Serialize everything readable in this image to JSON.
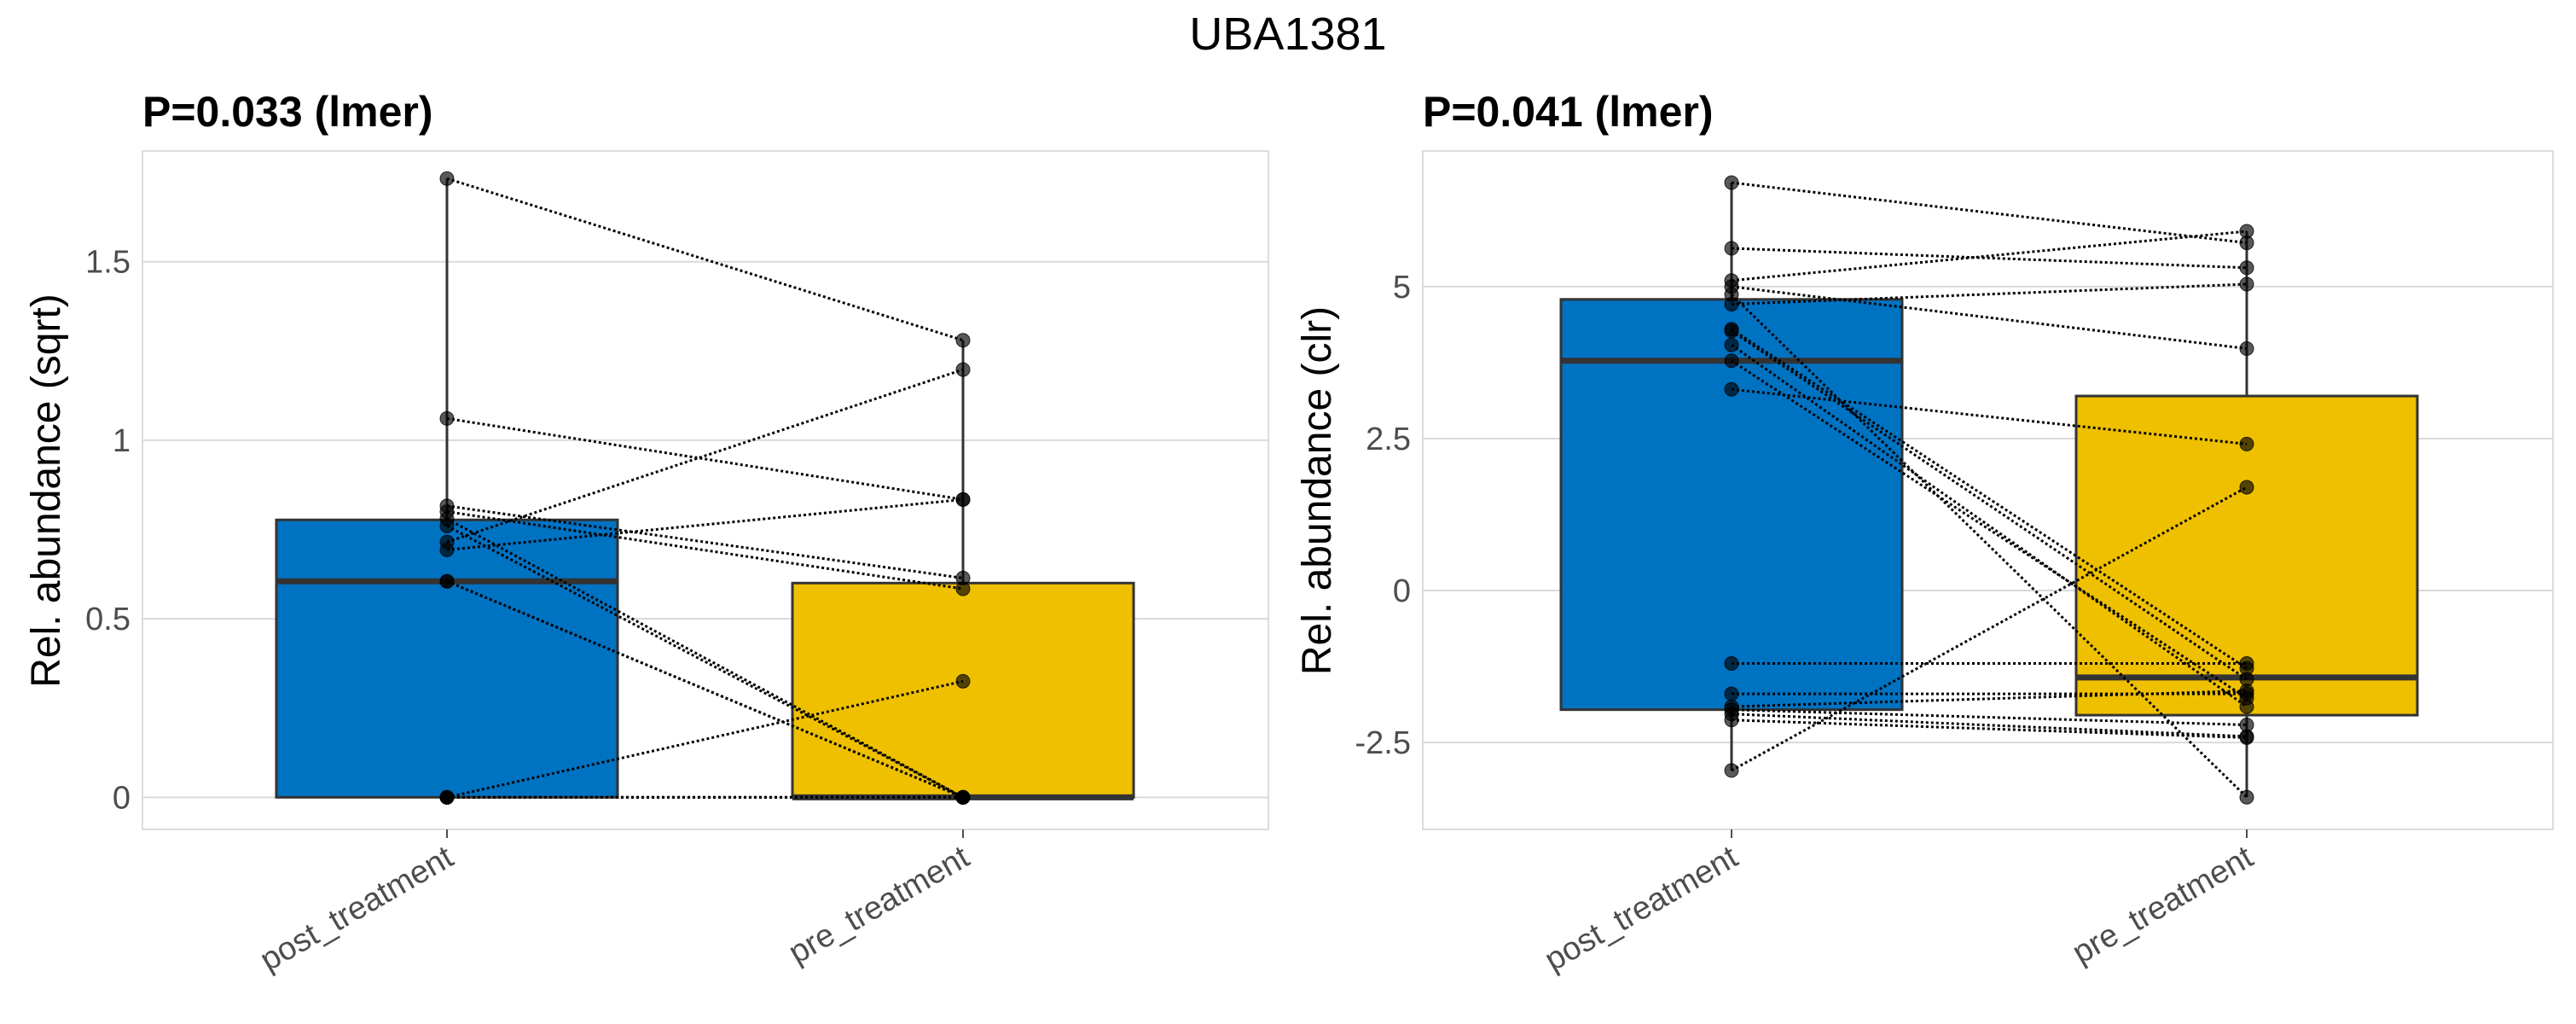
{
  "title": "UBA1381",
  "colors": {
    "post_treatment": "#0072C2",
    "pre_treatment": "#EFC000",
    "grid": "#d9d9d9",
    "box_line": "#333333"
  },
  "chart_data": [
    {
      "type": "box",
      "title": "P=0.033 (lmer)",
      "ylabel": "Rel. abundance (sqrt)",
      "xlabel": "",
      "categories": [
        "post_treatment",
        "pre_treatment"
      ],
      "ylim": [
        -0.09,
        1.81
      ],
      "yticks": [
        0,
        0.5,
        1,
        1.5
      ],
      "ytick_labels": [
        "0",
        "0.5",
        "1",
        "1.5"
      ],
      "grid": true,
      "boxes": [
        {
          "category": "post_treatment",
          "lower_whisker": 0,
          "q1": 0,
          "median": 0.605,
          "q3": 0.777,
          "upper_whisker": 1.733
        },
        {
          "category": "pre_treatment",
          "lower_whisker": 0,
          "q1": 0,
          "median": 0,
          "q3": 0.6,
          "upper_whisker": 1.28
        }
      ],
      "paired_points": [
        [
          1.733,
          1.28
        ],
        [
          1.061,
          0.834
        ],
        [
          0.816,
          0.614
        ],
        [
          0.8,
          0.584
        ],
        [
          0.78,
          0
        ],
        [
          0.76,
          0
        ],
        [
          0.715,
          1.198
        ],
        [
          0.693,
          0.834
        ],
        [
          0.605,
          0
        ],
        [
          0.605,
          0
        ],
        [
          0,
          0.325
        ],
        [
          0,
          0
        ],
        [
          0,
          0
        ],
        [
          0,
          0
        ]
      ]
    },
    {
      "type": "box",
      "title": "P=0.041 (lmer)",
      "ylabel": "Rel. abundance (clr)",
      "xlabel": "",
      "categories": [
        "post_treatment",
        "pre_treatment"
      ],
      "ylim": [
        -3.93,
        7.23
      ],
      "yticks": [
        -2.5,
        0,
        2.5,
        5
      ],
      "ytick_labels": [
        "-2.5",
        "0",
        "2.5",
        "5"
      ],
      "grid": true,
      "boxes": [
        {
          "category": "post_treatment",
          "lower_whisker": -2.96,
          "q1": -1.96,
          "median": 3.78,
          "q3": 4.79,
          "upper_whisker": 6.71
        },
        {
          "category": "pre_treatment",
          "lower_whisker": -3.4,
          "q1": -2.05,
          "median": -1.43,
          "q3": 3.2,
          "upper_whisker": 5.91
        }
      ],
      "paired_points": [
        [
          6.71,
          5.72
        ],
        [
          5.63,
          5.31
        ],
        [
          5.1,
          5.91
        ],
        [
          5.0,
          3.98
        ],
        [
          4.71,
          5.04
        ],
        [
          4.87,
          -3.4
        ],
        [
          4.3,
          -1.28
        ],
        [
          4.27,
          -1.46
        ],
        [
          4.04,
          -1.91
        ],
        [
          3.78,
          -1.77
        ],
        [
          3.31,
          2.41
        ],
        [
          -1.2,
          -1.2
        ],
        [
          -1.7,
          -1.7
        ],
        [
          -1.91,
          -1.65
        ],
        [
          -1.96,
          -2.21
        ],
        [
          -2.03,
          -2.4
        ],
        [
          -2.13,
          -2.42
        ],
        [
          -2.96,
          1.7
        ]
      ]
    }
  ]
}
